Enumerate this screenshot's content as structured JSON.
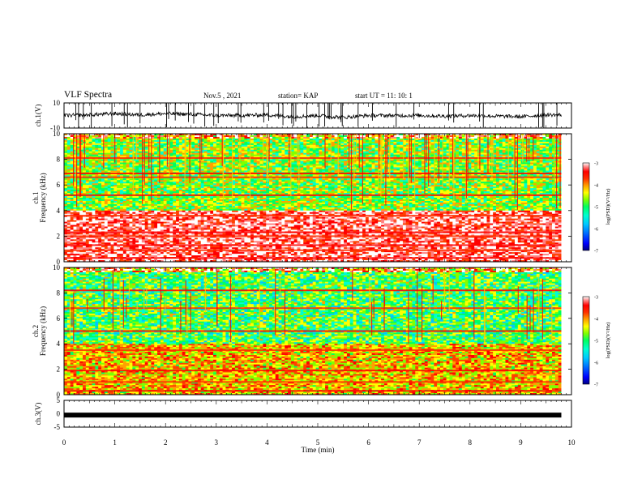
{
  "header": {
    "title": "VLF Spectra",
    "date": "Nov.5 , 2021",
    "station": "station= KAP",
    "start": "start UT = 11: 10: 1"
  },
  "colors": {
    "scale": [
      "#000080",
      "#0000ff",
      "#0070ff",
      "#00c8ff",
      "#00ffd0",
      "#00ff60",
      "#80ff00",
      "#ffff00",
      "#ffa000",
      "#ff4000",
      "#ff0000",
      "#ff8080",
      "#ffffff"
    ],
    "waveform": "#000000"
  },
  "chart_data": [
    {
      "type": "line",
      "panel": "ch1-waveform",
      "ylabel": "ch.1(V)",
      "ylim": [
        -10,
        10
      ],
      "yticks": [
        "10",
        "-10"
      ],
      "xlim": [
        0,
        9.8
      ],
      "description_values_note": "noisy waveform centered near 0 V with spikes",
      "x": [
        0,
        0.5,
        1,
        1.5,
        2,
        2.5,
        3,
        3.5,
        4,
        4.5,
        5,
        5.5,
        6,
        6.5,
        7,
        7.5,
        8,
        8.5,
        9,
        9.5,
        9.8
      ],
      "y": [
        0,
        0.5,
        1.5,
        0.5,
        1.5,
        1.0,
        0,
        0,
        0.5,
        -1,
        0,
        -1.5,
        0,
        0,
        0,
        -0.5,
        0,
        -0.5,
        -1,
        0.5,
        0.5
      ]
    },
    {
      "type": "heatmap",
      "panel": "ch1-spectrogram",
      "ylabel": "ch.1 Frequency (kHz)",
      "xlim": [
        0,
        9.8
      ],
      "ylim": [
        0,
        10
      ],
      "yticks": [
        "0",
        "2",
        "4",
        "6",
        "8",
        "10"
      ],
      "colorbar": {
        "label": "log(PSD)(V²/Hz)",
        "range": [
          -7,
          -3
        ],
        "ticks": [
          "-3",
          "-4",
          "-5",
          "-6",
          "-7"
        ]
      },
      "bands_khz": [
        0.3,
        0.9,
        1.3,
        2.0,
        2.3,
        3.6,
        5.2,
        6.6,
        6.9,
        8.1
      ],
      "dominant_level_low": -5,
      "dominant_level_high": -3.5
    },
    {
      "type": "heatmap",
      "panel": "ch2-spectrogram",
      "ylabel": "ch.2 Frequency (kHz)",
      "xlim": [
        0,
        9.8
      ],
      "ylim": [
        0,
        10
      ],
      "yticks": [
        "0",
        "2",
        "4",
        "6",
        "8",
        "10"
      ],
      "colorbar": {
        "label": "log(PSD)(V²/Hz)",
        "range": [
          -7,
          -3
        ],
        "ticks": [
          "-3",
          "-4",
          "-5",
          "-6",
          "-7"
        ]
      },
      "bands_khz": [
        0.3,
        1.0,
        1.9,
        3.5,
        5.0,
        6.8,
        8.2
      ],
      "dominant_level_low": -5.2,
      "dominant_level_high": -4.5
    },
    {
      "type": "line",
      "panel": "ch3-waveform",
      "ylabel": "ch.3(V)",
      "ylim": [
        -5,
        5
      ],
      "yticks": [
        "5",
        "0",
        "-5"
      ],
      "xlim": [
        0,
        9.8
      ],
      "x": [
        0,
        9.8
      ],
      "y": [
        -0.5,
        -0.5
      ]
    }
  ],
  "xaxis": {
    "label": "Time (min)",
    "ticks": [
      "0",
      "1",
      "2",
      "3",
      "4",
      "5",
      "6",
      "7",
      "8",
      "9",
      "10"
    ],
    "range": [
      0,
      10
    ]
  }
}
